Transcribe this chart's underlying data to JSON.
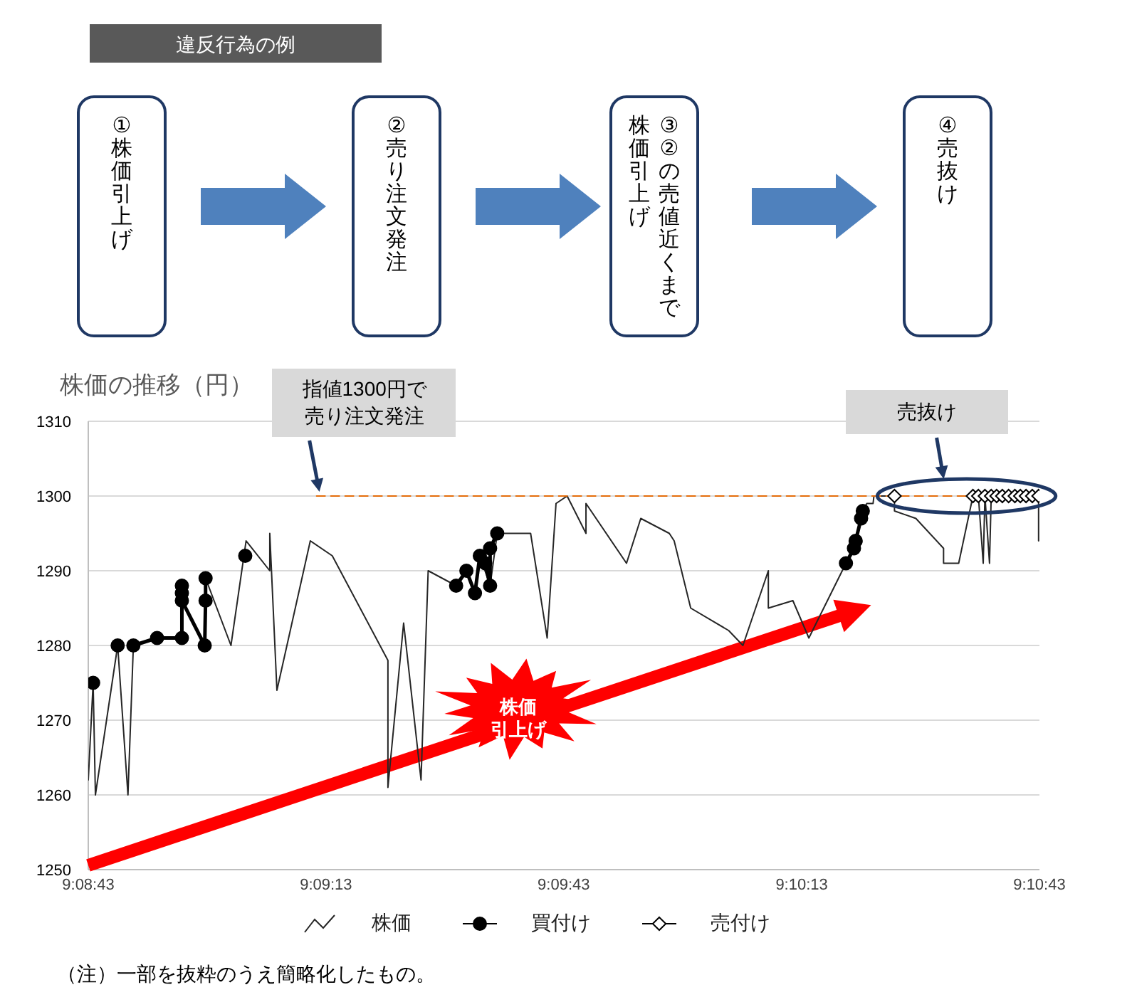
{
  "chart_data": [
    {
      "type": "other",
      "title": "違反行為の例",
      "annotations": [
        "①株価引上げ",
        "②売り注文発注",
        "③②の売値近くまで株価引上げ",
        "④売抜け"
      ]
    },
    {
      "type": "line",
      "ylabel": "株価の推移（円）",
      "xlim": [
        9.14528,
        9.17861
      ],
      "xticks": [
        {
          "value": 9.14528,
          "label": "9:08:43"
        },
        {
          "value": 9.15361,
          "label": "9:09:13"
        },
        {
          "value": 9.16194,
          "label": "9:09:43"
        },
        {
          "value": 9.17028,
          "label": "9:10:13"
        },
        {
          "value": 9.17861,
          "label": "9:10:43"
        }
      ],
      "ylim": [
        1250,
        1310
      ],
      "yticks": [
        1250,
        1260,
        1270,
        1280,
        1290,
        1300,
        1310
      ],
      "grid": "y",
      "legend": "bottom",
      "series": [
        {
          "name": "株価",
          "color": "#262626",
          "marker": "none",
          "x": [
            9.14528,
            9.14545,
            9.14553,
            9.14631,
            9.14667,
            9.14686,
            9.14769,
            9.14856,
            9.14856,
            9.14856,
            9.14936,
            9.14939,
            9.15028,
            9.15081,
            9.15164,
            9.15164,
            9.15189,
            9.15306,
            9.15383,
            9.15578,
            9.15578,
            9.15633,
            9.15694,
            9.15719,
            9.15817,
            9.15853,
            9.15883,
            9.159,
            9.15936,
            9.15961,
            9.16078,
            9.16136,
            9.16167,
            9.16206,
            9.16272,
            9.16272,
            9.16414,
            9.16464,
            9.16564,
            9.16581,
            9.16639,
            9.16772,
            9.16822,
            9.16911,
            9.16911,
            9.16997,
            9.17053,
            9.17183,
            9.17214,
            9.17242,
            9.17256,
            9.17278,
            9.17281,
            9.17353,
            9.17353,
            9.17428,
            9.17525,
            9.17525,
            9.17578,
            9.17628,
            9.17647,
            9.17664,
            9.1767,
            9.17686,
            9.17692,
            9.17858,
            9.17858
          ],
          "values": [
            1262,
            1275,
            1260,
            1280,
            1260,
            1280,
            1281,
            1281,
            1288,
            1286,
            1280,
            1289,
            1280,
            1294,
            1290,
            1295,
            1274,
            1294,
            1292,
            1278,
            1261,
            1283,
            1262,
            1290,
            1288,
            1290,
            1287,
            1292,
            1288,
            1295,
            1295,
            1281,
            1299,
            1300,
            1295,
            1299,
            1291,
            1297,
            1295,
            1294,
            1285,
            1282,
            1280,
            1290,
            1285,
            1286,
            1281,
            1291,
            1293,
            1298,
            1299,
            1299,
            1300,
            1300,
            1298,
            1297,
            1293,
            1291,
            1291,
            1300,
            1300,
            1291,
            1300,
            1291,
            1300,
            1300,
            1294
          ]
        },
        {
          "name": "買付け",
          "color": "#000000",
          "marker": "circle",
          "x": [
            9.14545,
            9.14583,
            9.14631,
            9.14658,
            9.14686,
            9.14769,
            9.14856,
            9.14856,
            9.14856,
            9.14856,
            9.14936,
            9.14939,
            9.14939,
            9.15,
            9.15078,
            9.15361,
            9.15817,
            9.15853,
            9.15883,
            9.159,
            9.15919,
            9.15936,
            9.15936,
            9.15961,
            9.16472,
            9.17183,
            9.17211,
            9.17217,
            9.17236,
            9.17242
          ],
          "values": [
            1275,
            null,
            1280,
            null,
            1280,
            1281,
            1281,
            1288,
            1287,
            1286,
            1280,
            1286,
            1289,
            null,
            1292,
            null,
            1288,
            1290,
            1287,
            1292,
            1291,
            1288,
            1293,
            1295,
            null,
            1291,
            1293,
            1294,
            1297,
            1298
          ]
        },
        {
          "name": "売付け",
          "type": "scatter",
          "color": "#000000",
          "marker": "diamond",
          "x": [
            9.17353,
            9.17628,
            9.17647,
            9.1767,
            9.17692,
            9.17711,
            9.17731,
            9.17753,
            9.17775,
            9.17794,
            9.17814,
            9.17836,
            9.17858
          ],
          "values": [
            1300,
            1300,
            1300,
            1300,
            1300,
            1300,
            1300,
            1300,
            1300,
            1300,
            1300,
            1300,
            1300
          ]
        },
        {
          "color": "#e46c0a",
          "marker": "none",
          "line_style": "dashed",
          "x": [
            9.15328,
            9.17861
          ],
          "values": [
            1300,
            1300
          ]
        }
      ],
      "annotations": [
        "指値1300円で売り注文発注",
        "売抜け",
        "株価引上げ",
        "（注）一部を抜粋のうえ簡略化したもの。"
      ]
    }
  ]
}
